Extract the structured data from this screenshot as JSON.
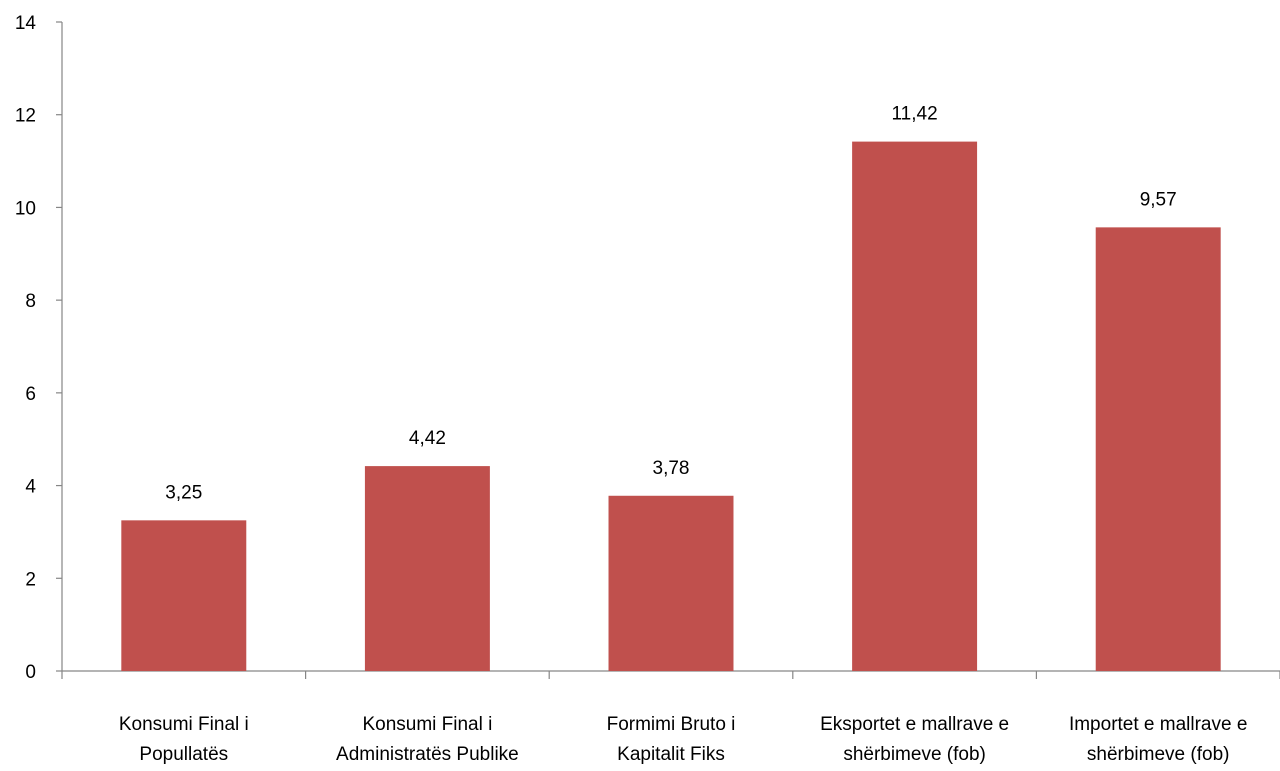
{
  "chart_data": {
    "type": "bar",
    "title": "",
    "xlabel": "",
    "ylabel": "",
    "ylim": [
      0,
      14
    ],
    "yticks": [
      0,
      2,
      4,
      6,
      8,
      10,
      12,
      14
    ],
    "grid": false,
    "legend": "none",
    "bar_color": "#C0504D",
    "categories": [
      [
        "Konsumi Final i",
        "Popullatës"
      ],
      [
        "Konsumi Final i",
        "Administratës Publike"
      ],
      [
        "Formimi Bruto i",
        "Kapitalit Fiks"
      ],
      [
        "Eksportet e mallrave e",
        "shërbimeve (fob)"
      ],
      [
        "Importet e mallrave e",
        "shërbimeve (fob)"
      ]
    ],
    "values": [
      3.25,
      4.42,
      3.78,
      11.42,
      9.57
    ],
    "data_labels": [
      "3,25",
      "4,42",
      "3,78",
      "11,42",
      "9,57"
    ]
  }
}
